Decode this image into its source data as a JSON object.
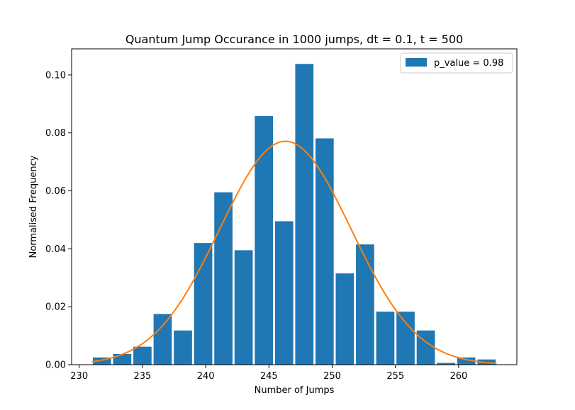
{
  "chart_data": {
    "type": "bar",
    "title": "Quantum Jump Occurance in 1000 jumps, dt = 0.1, t = 500",
    "xlabel": "Number of Jumps",
    "ylabel": "Normalised Frequency",
    "xlim": [
      229.4,
      264.6
    ],
    "ylim": [
      0,
      0.109
    ],
    "xticks": [
      230,
      235,
      240,
      245,
      250,
      255,
      260
    ],
    "yticks": [
      0.0,
      0.02,
      0.04,
      0.06,
      0.08,
      0.1
    ],
    "xtick_labels": [
      "230",
      "235",
      "240",
      "245",
      "250",
      "255",
      "260"
    ],
    "ytick_labels": [
      "0.00",
      "0.02",
      "0.04",
      "0.06",
      "0.08",
      "0.10"
    ],
    "grid": false,
    "legend": {
      "position": "top-right",
      "entries": [
        "p_value = 0.98"
      ]
    },
    "bin_edges": [
      231,
      232.6,
      234.2,
      235.8,
      237.4,
      239,
      240.6,
      242.2,
      243.8,
      245.4,
      247,
      248.6,
      250.2,
      251.8,
      253.4,
      255,
      256.6,
      258.2,
      259.8,
      261.4,
      263
    ],
    "bar_width_fraction": 0.9,
    "series": [
      {
        "name": "p_value = 0.98",
        "kind": "histogram",
        "color": "#1f77b4",
        "values": [
          0.0025,
          0.0037,
          0.0062,
          0.0175,
          0.0118,
          0.042,
          0.0595,
          0.0395,
          0.0858,
          0.0495,
          0.1038,
          0.0781,
          0.0315,
          0.0415,
          0.0183,
          0.0183,
          0.0118,
          0.0006,
          0.0025,
          0.0018
        ]
      },
      {
        "kind": "gaussian-fit",
        "color": "#ff7f0e",
        "x_range": [
          231,
          263
        ],
        "mean": 246.3,
        "std": 5.2,
        "peak": 0.0771
      }
    ]
  }
}
